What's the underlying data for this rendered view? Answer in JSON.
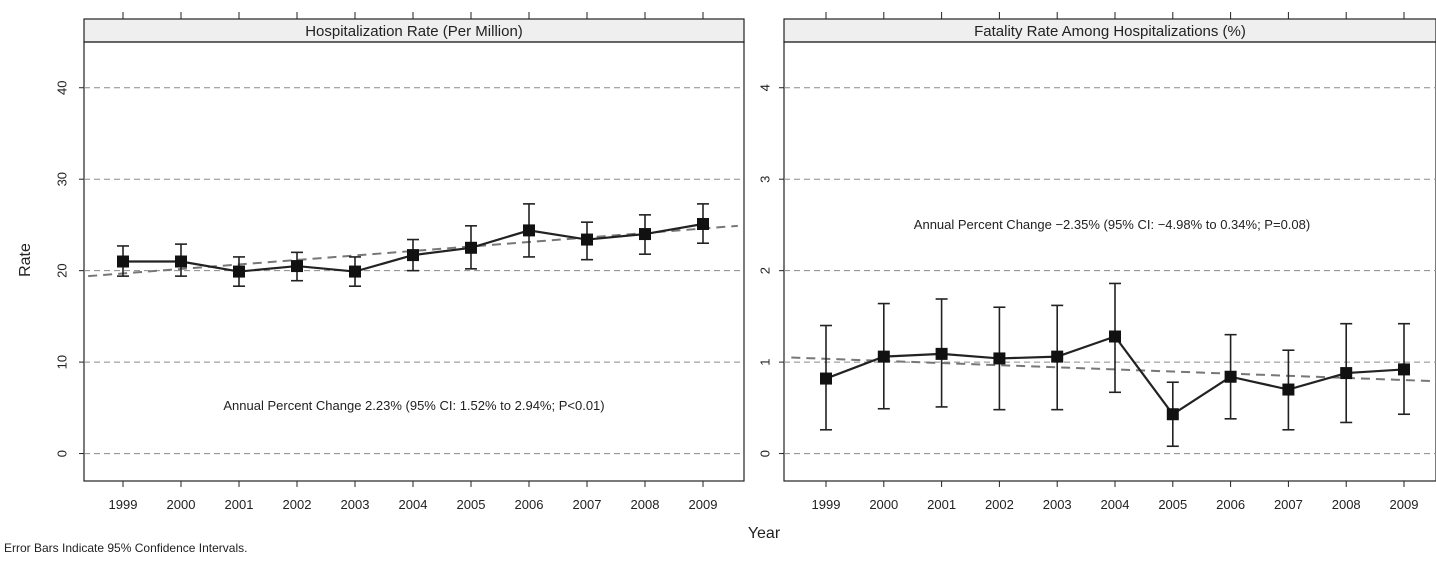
{
  "chart_data": [
    {
      "type": "line",
      "title": "Hospitalization Rate (Per Million)",
      "x": [
        1999,
        2000,
        2001,
        2002,
        2003,
        2004,
        2005,
        2006,
        2007,
        2008,
        2009
      ],
      "series": [
        {
          "values": [
            21.0,
            21.0,
            19.9,
            20.5,
            19.9,
            21.7,
            22.5,
            24.4,
            23.4,
            24.0,
            25.1
          ],
          "ci_low": [
            19.4,
            19.4,
            18.3,
            18.9,
            18.3,
            20.0,
            20.2,
            21.5,
            21.2,
            21.8,
            23.0
          ],
          "ci_high": [
            22.7,
            22.9,
            21.5,
            22.0,
            21.5,
            23.4,
            24.9,
            27.3,
            25.3,
            26.1,
            27.3
          ]
        }
      ],
      "trend": {
        "x": [
          1998.4,
          2009.6
        ],
        "y": [
          19.4,
          24.9
        ]
      },
      "annotation": "Annual Percent Change 2.23% (95% CI: 1.52% to 2.94%; P<0.01)",
      "ylabel": "Rate",
      "ylim": [
        -3,
        45
      ],
      "yticks": [
        0,
        10,
        20,
        30,
        40
      ],
      "grid": true
    },
    {
      "type": "line",
      "title": "Fatality Rate Among Hospitalizations (%)",
      "x": [
        1999,
        2000,
        2001,
        2002,
        2003,
        2004,
        2005,
        2006,
        2007,
        2008,
        2009
      ],
      "series": [
        {
          "values": [
            0.82,
            1.06,
            1.09,
            1.04,
            1.06,
            1.28,
            0.43,
            0.84,
            0.7,
            0.88,
            0.92
          ],
          "ci_low": [
            0.26,
            0.49,
            0.51,
            0.48,
            0.48,
            0.67,
            0.08,
            0.38,
            0.26,
            0.34,
            0.43
          ],
          "ci_high": [
            1.4,
            1.64,
            1.69,
            1.6,
            1.62,
            1.86,
            0.78,
            1.3,
            1.13,
            1.42,
            1.42
          ]
        }
      ],
      "trend": {
        "x": [
          1998.4,
          2009.6
        ],
        "y": [
          1.05,
          0.79
        ]
      },
      "annotation": "Annual Percent Change −2.35% (95% CI: −4.98% to 0.34%; P=0.08)",
      "ylim": [
        -0.3,
        4.5
      ],
      "yticks": [
        0,
        1,
        2,
        3,
        4
      ],
      "grid": true
    }
  ],
  "xlabel": "Year",
  "footnote": "Error Bars Indicate 95% Confidence Intervals."
}
